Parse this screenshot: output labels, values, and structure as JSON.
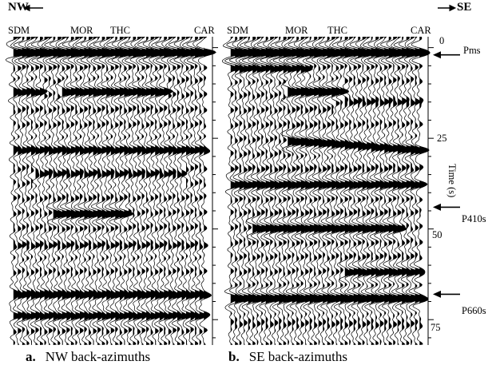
{
  "header": {
    "left_direction": "NW",
    "right_direction": "SE",
    "left_stations": [
      {
        "label": "SDM"
      },
      {
        "label": "MOR"
      },
      {
        "label": "THC"
      },
      {
        "label": "CAR"
      }
    ],
    "right_stations": [
      {
        "label": "SDM"
      },
      {
        "label": "MOR"
      },
      {
        "label": "THC"
      },
      {
        "label": "CAR"
      }
    ]
  },
  "axis": {
    "ylabel": "Time (s)",
    "ticks": [
      "0",
      "25",
      "50",
      "75"
    ],
    "tick_values": [
      0,
      25,
      50,
      75
    ],
    "range": [
      -3,
      82
    ]
  },
  "phases": [
    {
      "label": "Pms",
      "time": 2
    },
    {
      "label": "P410s",
      "time": 44
    },
    {
      "label": "P660s",
      "time": 68
    }
  ],
  "captions": {
    "a_letter": "a.",
    "a_text": "NW back-azimuths",
    "b_letter": "b.",
    "b_text": "SE back-azimuths"
  },
  "colors": {
    "ink": "#000000",
    "paper": "#ffffff"
  }
}
